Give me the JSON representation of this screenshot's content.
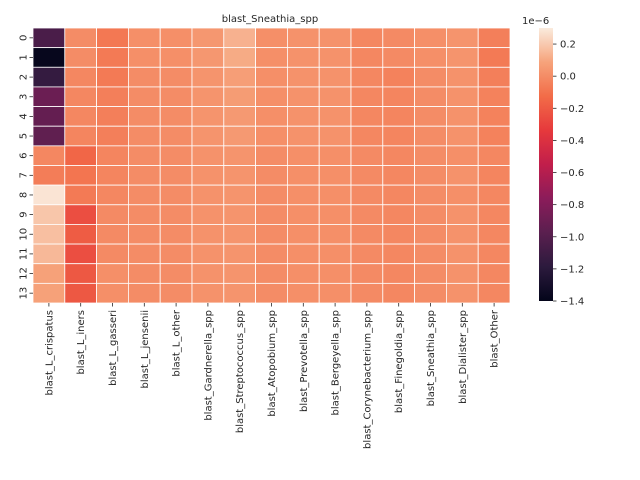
{
  "chart_data": {
    "type": "heatmap",
    "title": "blast_Sneathia_spp",
    "xlabel": "",
    "ylabel": "",
    "x_categories": [
      "blast_L_crispatus",
      "blast_L_iners",
      "blast_L_gasseri",
      "blast_L_jensenii",
      "blast_L_other",
      "blast_Gardnerella_spp",
      "blast_Streptococcus_spp",
      "blast_Atopobium_spp",
      "blast_Prevotella_spp",
      "blast_Bergeyella_spp",
      "blast_Corynebacterium_spp",
      "blast_Finegoldia_spp",
      "blast_Sneathia_spp",
      "blast_Dialister_spp",
      "blast_Other"
    ],
    "y_categories": [
      "0",
      "1",
      "2",
      "3",
      "4",
      "5",
      "6",
      "7",
      "8",
      "9",
      "10",
      "11",
      "12",
      "13"
    ],
    "value_unit_multiplier": 1e-06,
    "values": [
      [
        -1.05,
        0.0,
        -0.08,
        0.01,
        0.01,
        0.04,
        0.13,
        0.01,
        0.02,
        0.02,
        -0.02,
        -0.01,
        0.01,
        0.03,
        -0.05
      ],
      [
        -1.38,
        0.0,
        -0.07,
        0.01,
        0.01,
        0.04,
        0.11,
        0.01,
        0.02,
        0.02,
        -0.02,
        -0.01,
        0.01,
        0.03,
        -0.07
      ],
      [
        -1.15,
        -0.02,
        -0.07,
        0.0,
        0.0,
        0.03,
        0.07,
        0.01,
        0.02,
        0.02,
        -0.02,
        -0.04,
        0.0,
        0.02,
        -0.05
      ],
      [
        -0.9,
        -0.02,
        -0.05,
        0.0,
        0.0,
        0.03,
        0.06,
        0.01,
        0.02,
        0.02,
        -0.02,
        -0.03,
        0.0,
        0.02,
        -0.04
      ],
      [
        -0.93,
        -0.02,
        -0.05,
        0.0,
        0.0,
        0.03,
        0.05,
        0.01,
        0.02,
        0.02,
        -0.02,
        -0.03,
        0.0,
        0.02,
        -0.04
      ],
      [
        -0.95,
        -0.03,
        -0.05,
        0.0,
        0.0,
        0.03,
        0.05,
        0.01,
        0.02,
        0.02,
        -0.02,
        -0.03,
        0.0,
        0.02,
        -0.04
      ],
      [
        -0.02,
        -0.15,
        -0.03,
        0.0,
        0.0,
        0.02,
        0.03,
        0.0,
        0.01,
        0.01,
        -0.01,
        -0.02,
        0.0,
        0.01,
        -0.02
      ],
      [
        -0.06,
        -0.09,
        -0.03,
        0.0,
        0.0,
        0.02,
        0.03,
        0.0,
        0.01,
        0.01,
        -0.01,
        -0.02,
        0.0,
        0.02,
        -0.03
      ],
      [
        0.28,
        -0.07,
        -0.02,
        0.0,
        0.0,
        0.02,
        0.03,
        0.0,
        0.01,
        0.01,
        -0.01,
        -0.02,
        0.0,
        0.01,
        -0.02
      ],
      [
        0.19,
        -0.25,
        -0.01,
        0.0,
        0.0,
        0.02,
        0.03,
        0.0,
        0.01,
        0.01,
        -0.01,
        -0.02,
        0.0,
        0.02,
        -0.02
      ],
      [
        0.17,
        -0.19,
        -0.01,
        0.0,
        0.0,
        0.02,
        0.03,
        0.0,
        0.01,
        0.01,
        -0.01,
        -0.02,
        0.0,
        0.02,
        -0.02
      ],
      [
        0.15,
        -0.25,
        -0.01,
        0.0,
        0.0,
        0.02,
        0.03,
        0.0,
        0.01,
        0.01,
        -0.01,
        -0.02,
        0.0,
        0.02,
        -0.02
      ],
      [
        0.08,
        -0.21,
        0.01,
        0.0,
        0.0,
        0.02,
        0.03,
        0.0,
        0.01,
        0.01,
        -0.01,
        -0.02,
        0.0,
        0.02,
        -0.02
      ],
      [
        0.08,
        -0.21,
        0.01,
        0.0,
        0.0,
        0.02,
        0.03,
        0.0,
        0.01,
        0.01,
        -0.01,
        -0.02,
        0.0,
        0.02,
        -0.02
      ]
    ],
    "colorbar": {
      "min": -1.4,
      "max": 0.3,
      "ticks": [
        0.2,
        0.0,
        -0.2,
        -0.4,
        -0.6,
        -0.8,
        -1.0,
        -1.2,
        -1.4
      ],
      "tick_labels": [
        "0.2",
        "0.0",
        "−0.2",
        "−0.4",
        "−0.6",
        "−0.8",
        "−1.0",
        "−1.2",
        "−1.4"
      ],
      "offset_label": "1e−6",
      "colormap": "rocket"
    },
    "grid": true,
    "cell_border_color": "#ffffff"
  }
}
